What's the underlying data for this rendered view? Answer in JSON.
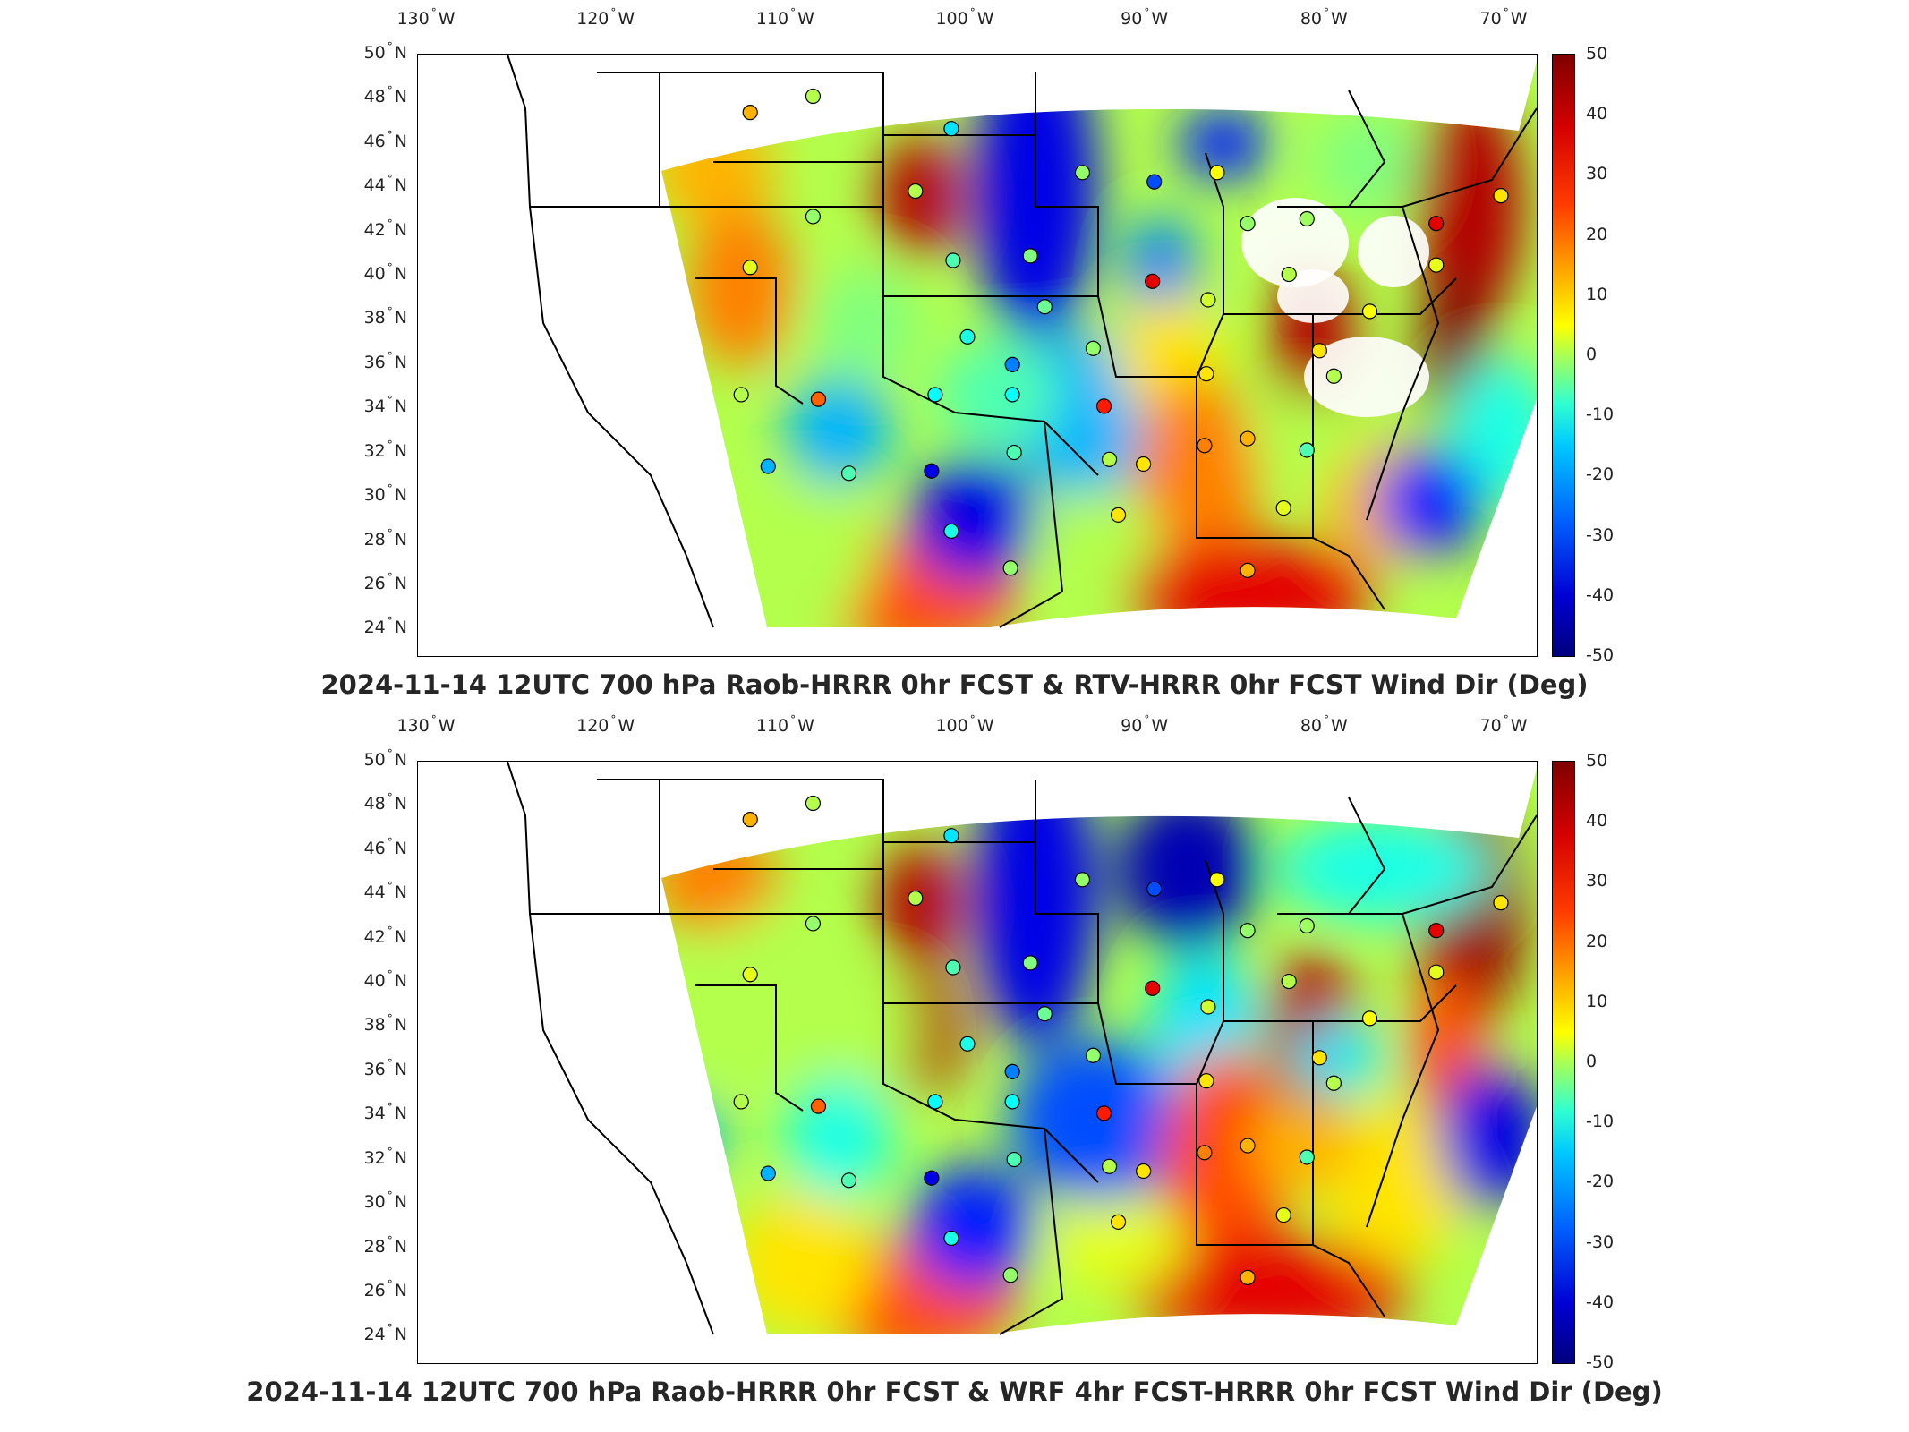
{
  "panels": [
    {
      "title": "2024-11-14 12UTC 700 hPa Raob-HRRR 0hr FCST & RTV-HRRR 0hr FCST Wind Dir (Deg)",
      "variant": "rtv"
    },
    {
      "title": "2024-11-14 12UTC 700 hPa Raob-HRRR 0hr FCST & WRF 4hr FCST-HRRR 0hr FCST Wind Dir (Deg)",
      "variant": "wrf"
    }
  ],
  "lon_ticks": [
    "130",
    "120",
    "110",
    "100",
    "90",
    "80",
    "70"
  ],
  "lon_hemisphere": "W",
  "lat_ticks": [
    "50",
    "48",
    "46",
    "44",
    "42",
    "40",
    "38",
    "36",
    "34",
    "32",
    "30",
    "28",
    "26",
    "24"
  ],
  "lat_hemisphere": "N",
  "colorbar_ticks": [
    "50",
    "40",
    "30",
    "20",
    "10",
    "0",
    "-10",
    "-20",
    "-30",
    "-40",
    "-50"
  ],
  "colorbar_range": [
    -50,
    50
  ],
  "colormap": "jet",
  "raob_station_values": [
    {
      "lon": -112.0,
      "lat": 47.5,
      "v": 20
    },
    {
      "lon": -108.5,
      "lat": 48.2,
      "v": 5
    },
    {
      "lon": -100.8,
      "lat": 46.8,
      "v": -15
    },
    {
      "lon": -102.8,
      "lat": 44.1,
      "v": 5
    },
    {
      "lon": -108.5,
      "lat": 43.0,
      "v": 2
    },
    {
      "lon": -112.0,
      "lat": 40.8,
      "v": 10
    },
    {
      "lon": -100.7,
      "lat": 41.1,
      "v": -5
    },
    {
      "lon": -96.4,
      "lat": 41.3,
      "v": 0
    },
    {
      "lon": -93.5,
      "lat": 44.9,
      "v": 2
    },
    {
      "lon": -89.5,
      "lat": 44.5,
      "v": -30
    },
    {
      "lon": -86.0,
      "lat": 44.9,
      "v": 12
    },
    {
      "lon": -84.3,
      "lat": 42.7,
      "v": 2
    },
    {
      "lon": -82.0,
      "lat": 40.5,
      "v": 5
    },
    {
      "lon": -81.0,
      "lat": 42.9,
      "v": 3
    },
    {
      "lon": -73.8,
      "lat": 42.7,
      "v": 40
    },
    {
      "lon": -70.2,
      "lat": 43.9,
      "v": 15
    },
    {
      "lon": -73.8,
      "lat": 40.9,
      "v": 10
    },
    {
      "lon": -77.5,
      "lat": 38.9,
      "v": 12
    },
    {
      "lon": -80.3,
      "lat": 37.2,
      "v": 15
    },
    {
      "lon": -79.5,
      "lat": 36.1,
      "v": 5
    },
    {
      "lon": -86.5,
      "lat": 39.4,
      "v": 8
    },
    {
      "lon": -89.6,
      "lat": 40.2,
      "v": 40
    },
    {
      "lon": -92.9,
      "lat": 37.3,
      "v": 2
    },
    {
      "lon": -95.6,
      "lat": 39.1,
      "v": -2
    },
    {
      "lon": -97.4,
      "lat": 36.6,
      "v": -25
    },
    {
      "lon": -99.9,
      "lat": 37.8,
      "v": -10
    },
    {
      "lon": -101.7,
      "lat": 35.3,
      "v": -12
    },
    {
      "lon": -97.4,
      "lat": 35.3,
      "v": -12
    },
    {
      "lon": -108.2,
      "lat": 35.1,
      "v": 28
    },
    {
      "lon": -112.5,
      "lat": 35.3,
      "v": 5
    },
    {
      "lon": -111.0,
      "lat": 32.2,
      "v": -20
    },
    {
      "lon": -106.5,
      "lat": 31.9,
      "v": -5
    },
    {
      "lon": -101.9,
      "lat": 32.0,
      "v": -40
    },
    {
      "lon": -97.3,
      "lat": 32.8,
      "v": -5
    },
    {
      "lon": -92.0,
      "lat": 32.5,
      "v": 5
    },
    {
      "lon": -92.3,
      "lat": 34.8,
      "v": 35
    },
    {
      "lon": -90.1,
      "lat": 32.3,
      "v": 15
    },
    {
      "lon": -86.7,
      "lat": 33.1,
      "v": 25
    },
    {
      "lon": -84.3,
      "lat": 33.4,
      "v": 20
    },
    {
      "lon": -86.6,
      "lat": 36.2,
      "v": 15
    },
    {
      "lon": -81.0,
      "lat": 32.9,
      "v": -5
    },
    {
      "lon": -82.3,
      "lat": 30.4,
      "v": 10
    },
    {
      "lon": -84.3,
      "lat": 27.7,
      "v": 20
    },
    {
      "lon": -91.5,
      "lat": 30.1,
      "v": 15
    },
    {
      "lon": -97.5,
      "lat": 27.8,
      "v": 2
    },
    {
      "lon": -100.8,
      "lat": 29.4,
      "v": -10
    }
  ]
}
